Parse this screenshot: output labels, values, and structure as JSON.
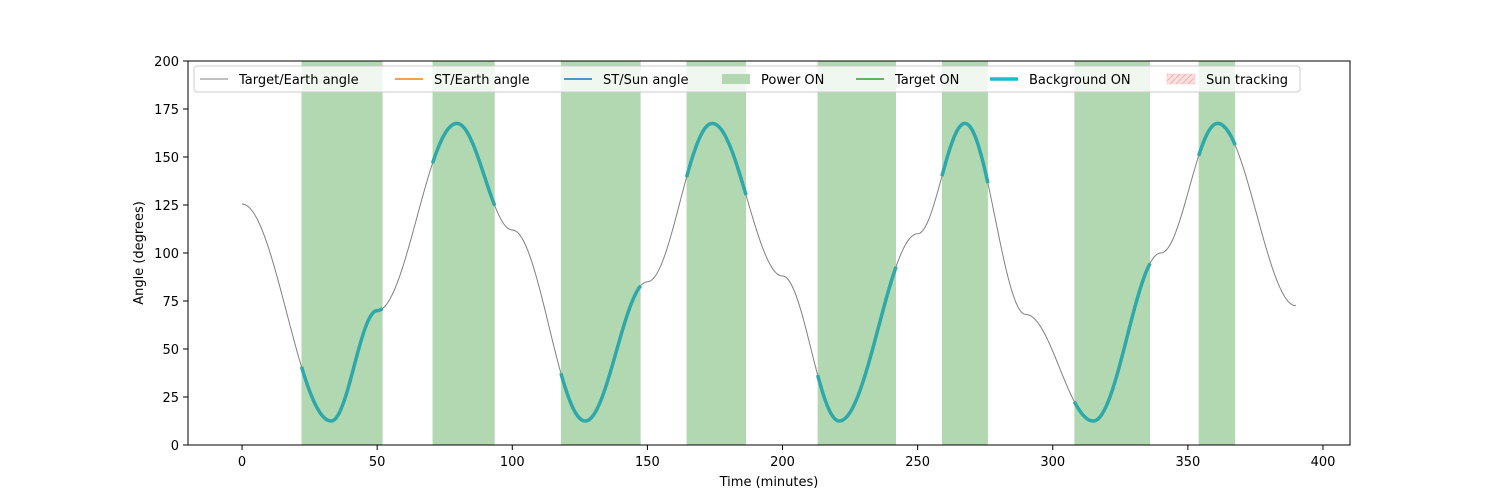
{
  "chart_data": {
    "type": "line",
    "title": "",
    "xlabel": "Time (minutes)",
    "ylabel": "Angle (degrees)",
    "xlim": [
      -20,
      410
    ],
    "ylim": [
      0,
      200
    ],
    "xticks": [
      0,
      50,
      100,
      150,
      200,
      250,
      300,
      350,
      400
    ],
    "yticks": [
      0,
      25,
      50,
      75,
      100,
      125,
      150,
      175,
      200
    ],
    "grid": false,
    "legend_position": "top",
    "colors": {
      "target_earth": "#808080",
      "st_earth": "#ff7f0e",
      "st_sun": "#1f77b4",
      "power_on": "#b2d8b2",
      "target_on": "#2ca02c",
      "background_on": "#2ea8a8",
      "background_legend": "#17becf",
      "sun_tracking": "#fde0e0"
    },
    "legend": [
      {
        "label": "Target/Earth angle",
        "kind": "line",
        "color": "#808080",
        "width": 1
      },
      {
        "label": "ST/Earth angle",
        "kind": "line",
        "color": "#ff7f0e",
        "width": 1.5
      },
      {
        "label": "ST/Sun angle",
        "kind": "line",
        "color": "#1f77b4",
        "width": 1.5
      },
      {
        "label": "Power ON",
        "kind": "patch",
        "color": "#b2d8b2"
      },
      {
        "label": "Target ON",
        "kind": "line",
        "color": "#2ca02c",
        "width": 1.5
      },
      {
        "label": "Background ON",
        "kind": "line",
        "color": "#17becf",
        "width": 3.5
      },
      {
        "label": "Sun tracking",
        "kind": "hatch",
        "color": "#fde0e0"
      }
    ],
    "series": [
      {
        "name": "Target/Earth angle",
        "x": [
          0,
          33,
          50,
          79.5,
          100,
          127,
          150,
          174,
          200,
          221,
          250,
          267.5,
          290,
          315,
          340,
          361,
          390
        ],
        "y": [
          125.5,
          12.5,
          70,
          167.5,
          112,
          12.5,
          85,
          167.5,
          88,
          12.5,
          110,
          167.5,
          68,
          12.5,
          100,
          167.5,
          72.5
        ]
      }
    ],
    "background_on_segments": [
      [
        22,
        52
      ],
      [
        70.5,
        93.5
      ],
      [
        118,
        147.5
      ],
      [
        164.5,
        186.5
      ],
      [
        213,
        242
      ],
      [
        259,
        276
      ],
      [
        308,
        336
      ],
      [
        354,
        367.5
      ]
    ],
    "power_on_intervals": [
      [
        22,
        52
      ],
      [
        70.5,
        93.5
      ],
      [
        118,
        147.5
      ],
      [
        164.5,
        186.5
      ],
      [
        213,
        242
      ],
      [
        259,
        276
      ],
      [
        308,
        336
      ],
      [
        354,
        367.5
      ]
    ]
  }
}
